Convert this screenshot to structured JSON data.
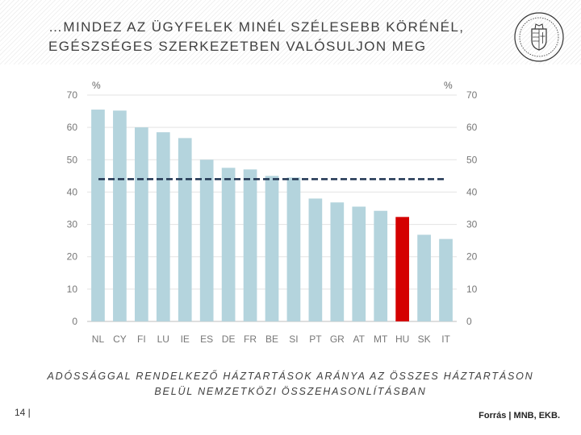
{
  "header": {
    "title_line1": "…MINDEZ AZ ÜGYFELEK MINÉL SZÉLESEBB KÖRÉNÉL,",
    "title_line2": "EGÉSZSÉGES SZERKEZETBEN VALÓSULJON MEG"
  },
  "chart_data": {
    "type": "bar",
    "categories": [
      "NL",
      "CY",
      "FI",
      "LU",
      "IE",
      "ES",
      "DE",
      "FR",
      "BE",
      "SI",
      "PT",
      "GR",
      "AT",
      "MT",
      "HU",
      "SK",
      "IT"
    ],
    "values": [
      65.5,
      65.2,
      60.0,
      58.5,
      56.7,
      50.0,
      47.5,
      47.0,
      45.0,
      44.5,
      38.0,
      36.8,
      35.5,
      34.2,
      32.3,
      26.8,
      25.5
    ],
    "highlight": "HU",
    "reference_line": 44,
    "ylim": [
      0,
      70
    ],
    "yticks": [
      "0",
      "10",
      "20",
      "30",
      "40",
      "50",
      "60",
      "70"
    ],
    "ylabel_left": "%",
    "ylabel_right": "%",
    "bar_color": "#b4d4dd",
    "highlight_color": "#d40000",
    "line_color": "#1f3350"
  },
  "caption": {
    "line1": "ADÓSSÁGGAL RENDELKEZŐ HÁZTARTÁSOK ARÁNYA AZ ÖSSZES HÁZTARTÁSON",
    "line2": "BELÜL NEMZETKÖZI ÖSSZEHASONLÍTÁSBAN"
  },
  "footer": {
    "page": "14 |",
    "source": "Forrás | MNB, EKB."
  }
}
